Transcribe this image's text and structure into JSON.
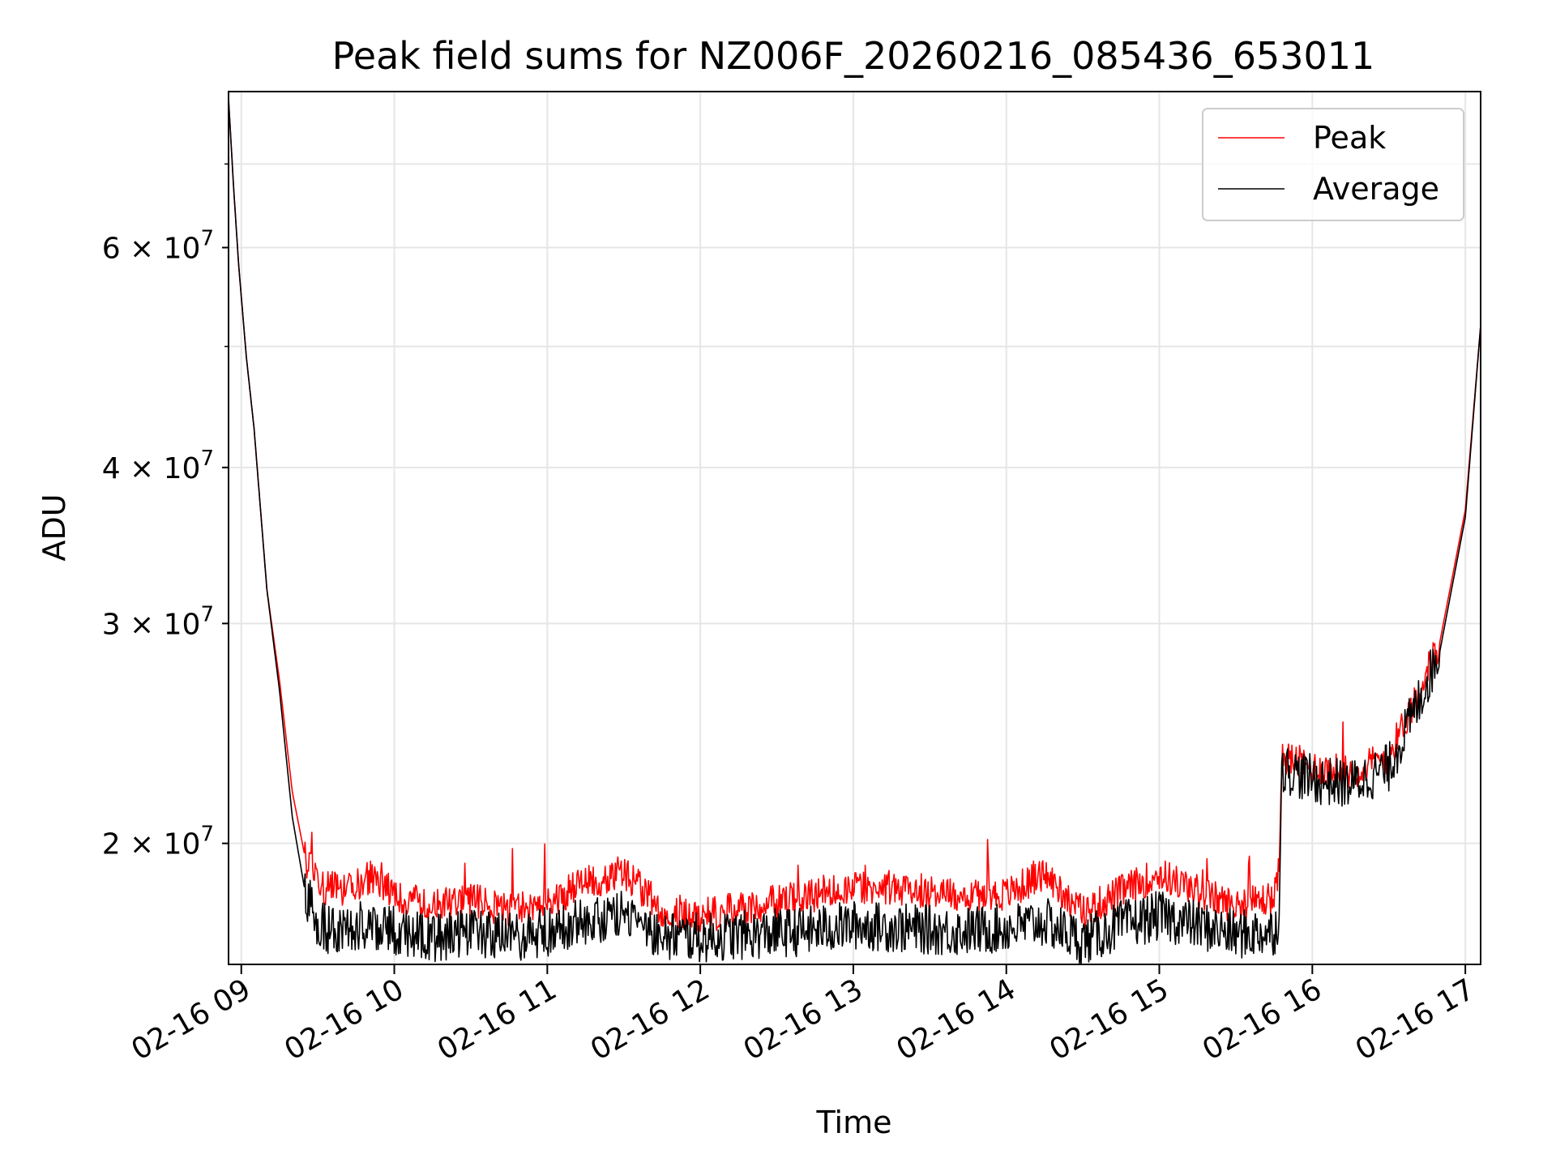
{
  "chart_data": {
    "type": "line",
    "title": "Peak field sums for NZ006F_20260216_085436_653011",
    "xlabel": "Time",
    "ylabel": "ADU",
    "y_scale": "log",
    "ylim": [
      16000000,
      80000000
    ],
    "xlim": [
      "2026-02-16T08:55:00",
      "2026-02-16T17:06:00"
    ],
    "grid": true,
    "legend_position": "top-right",
    "x_ticks": [
      "02-16 09",
      "02-16 10",
      "02-16 11",
      "02-16 12",
      "02-16 13",
      "02-16 14",
      "02-16 15",
      "02-16 16",
      "02-16 17"
    ],
    "y_ticks": [
      {
        "value": 20000000,
        "mantissa": "2",
        "exponent": "7"
      },
      {
        "value": 30000000,
        "mantissa": "3",
        "exponent": "7"
      },
      {
        "value": 40000000,
        "mantissa": "4",
        "exponent": "7"
      },
      {
        "value": 60000000,
        "mantissa": "6",
        "exponent": "7"
      }
    ],
    "series": [
      {
        "name": "Peak",
        "color": "#ff0000",
        "x": [
          "2026-02-16T08:55:00",
          "2026-02-16T08:57:00",
          "2026-02-16T08:59:00",
          "2026-02-16T09:02:00",
          "2026-02-16T09:05:00",
          "2026-02-16T09:10:00",
          "2026-02-16T09:15:00",
          "2026-02-16T09:20:00",
          "2026-02-16T09:25:00",
          "2026-02-16T09:30:00",
          "2026-02-16T09:40:00",
          "2026-02-16T09:50:00",
          "2026-02-16T10:00:00",
          "2026-02-16T10:15:00",
          "2026-02-16T10:30:00",
          "2026-02-16T10:45:00",
          "2026-02-16T11:00:00",
          "2026-02-16T11:15:00",
          "2026-02-16T11:30:00",
          "2026-02-16T11:45:00",
          "2026-02-16T12:00:00",
          "2026-02-16T12:20:00",
          "2026-02-16T12:40:00",
          "2026-02-16T13:00:00",
          "2026-02-16T13:20:00",
          "2026-02-16T13:40:00",
          "2026-02-16T14:00:00",
          "2026-02-16T14:15:00",
          "2026-02-16T14:30:00",
          "2026-02-16T14:45:00",
          "2026-02-16T15:00:00",
          "2026-02-16T15:15:00",
          "2026-02-16T15:30:00",
          "2026-02-16T15:45:00",
          "2026-02-16T15:47:00",
          "2026-02-16T15:48:00",
          "2026-02-16T16:00:00",
          "2026-02-16T16:15:00",
          "2026-02-16T16:30:00",
          "2026-02-16T16:40:00",
          "2026-02-16T16:50:00",
          "2026-02-16T17:00:00",
          "2026-02-16T17:06:00"
        ],
        "values": [
          79000000,
          67000000,
          58000000,
          49000000,
          43000000,
          32000000,
          27000000,
          22000000,
          19500000,
          18500000,
          18300000,
          18800000,
          18200000,
          17800000,
          18000000,
          17700000,
          17900000,
          18600000,
          19000000,
          17700000,
          17500000,
          17800000,
          18100000,
          18500000,
          18400000,
          18200000,
          18200000,
          18900000,
          17600000,
          18300000,
          18900000,
          18300000,
          17800000,
          18100000,
          19000000,
          23500000,
          23000000,
          22800000,
          23500000,
          26000000,
          29000000,
          37000000,
          52000000
        ]
      },
      {
        "name": "Average",
        "color": "#000000",
        "x": [
          "2026-02-16T08:55:00",
          "2026-02-16T08:57:00",
          "2026-02-16T08:59:00",
          "2026-02-16T09:02:00",
          "2026-02-16T09:05:00",
          "2026-02-16T09:10:00",
          "2026-02-16T09:15:00",
          "2026-02-16T09:20:00",
          "2026-02-16T09:25:00",
          "2026-02-16T09:30:00",
          "2026-02-16T09:40:00",
          "2026-02-16T09:50:00",
          "2026-02-16T10:00:00",
          "2026-02-16T10:15:00",
          "2026-02-16T10:30:00",
          "2026-02-16T10:45:00",
          "2026-02-16T11:00:00",
          "2026-02-16T11:15:00",
          "2026-02-16T11:30:00",
          "2026-02-16T11:45:00",
          "2026-02-16T12:00:00",
          "2026-02-16T12:20:00",
          "2026-02-16T12:40:00",
          "2026-02-16T13:00:00",
          "2026-02-16T13:20:00",
          "2026-02-16T13:40:00",
          "2026-02-16T14:00:00",
          "2026-02-16T14:15:00",
          "2026-02-16T14:30:00",
          "2026-02-16T14:45:00",
          "2026-02-16T15:00:00",
          "2026-02-16T15:15:00",
          "2026-02-16T15:30:00",
          "2026-02-16T15:45:00",
          "2026-02-16T15:47:00",
          "2026-02-16T15:48:00",
          "2026-02-16T16:00:00",
          "2026-02-16T16:15:00",
          "2026-02-16T16:30:00",
          "2026-02-16T16:40:00",
          "2026-02-16T16:50:00",
          "2026-02-16T17:00:00",
          "2026-02-16T17:06:00"
        ],
        "values": [
          79000000,
          67000000,
          58000000,
          49000000,
          43000000,
          32000000,
          26500000,
          21000000,
          18300000,
          17200000,
          16900000,
          17300000,
          17000000,
          16800000,
          16900000,
          16800000,
          17000000,
          17300000,
          17600000,
          16900000,
          16800000,
          16900000,
          17000000,
          17200000,
          17100000,
          17000000,
          17100000,
          17300000,
          16700000,
          17200000,
          17500000,
          17200000,
          16900000,
          17000000,
          17500000,
          23000000,
          22500000,
          22300000,
          23000000,
          25500000,
          28500000,
          36500000,
          52000000
        ]
      }
    ]
  }
}
